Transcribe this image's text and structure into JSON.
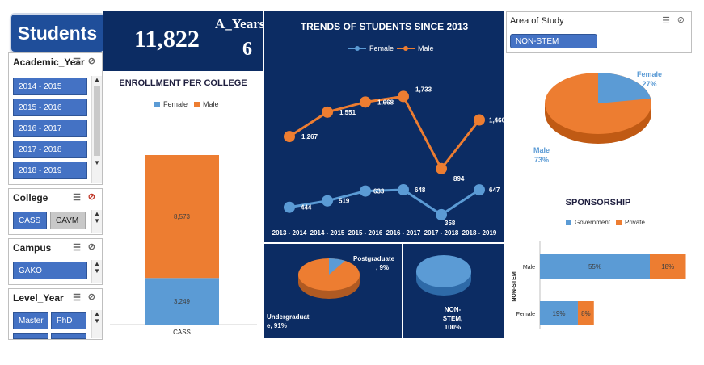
{
  "dashboard_title": "Students",
  "kpi": {
    "total": "11,822",
    "years_label": "A_Years",
    "years_value": "6"
  },
  "slicers": {
    "academic_year": {
      "label": "Academic_Year",
      "items": [
        "2014 - 2015",
        "2015 - 2016",
        "2016 - 2017",
        "2017 - 2018",
        "2018 - 2019"
      ]
    },
    "college": {
      "label": "College",
      "items": [
        "CASS",
        "CAVM"
      ]
    },
    "campus": {
      "label": "Campus",
      "items": [
        "GAKO"
      ]
    },
    "level_year": {
      "label": "Level_Year",
      "items": [
        "Master",
        "PhD"
      ]
    },
    "area_of_study": {
      "label": "Area of Study",
      "items": [
        "NON-STEM"
      ]
    }
  },
  "enrollment": {
    "title": "ENROLLMENT PER COLLEGE",
    "legend": [
      "Female",
      "Male"
    ],
    "category": "CASS",
    "female": 3249,
    "female_label": "3,249",
    "male": 8573,
    "male_label": "8,573"
  },
  "trends": {
    "title": "TRENDS OF STUDENTS SINCE 2013",
    "legend": [
      "Female",
      "Male"
    ],
    "years": [
      "2013 - 2014",
      "2014 - 2015",
      "2015 - 2016",
      "2016 - 2017",
      "2017 - 2018",
      "2018 - 2019"
    ],
    "female": [
      444,
      519,
      633,
      648,
      358,
      647
    ],
    "male": [
      1267,
      1551,
      1668,
      1733,
      894,
      1460
    ],
    "female_labels": [
      "444",
      "519",
      "633",
      "648",
      "358",
      "647"
    ],
    "male_labels": [
      "1,267",
      "1,551",
      "1,668",
      "1,733",
      "894",
      "1,460"
    ]
  },
  "gender_pie": {
    "female_label": "Female",
    "female_pct": "27%",
    "male_label": "Male",
    "male_pct": "73%"
  },
  "level_pie": {
    "post_label": "Postgraduate",
    "post_pct": ", 9%",
    "under_label": "Undergraduat",
    "under_pct": "e, 91%"
  },
  "stem_pie": {
    "line1": "NON-",
    "line2": "STEM,",
    "line3": "100%"
  },
  "sponsorship": {
    "title": "SPONSORSHIP",
    "legend": [
      "Government",
      "Private"
    ],
    "axis_label": "NON-STEM",
    "rows": [
      {
        "label": "Male",
        "gov": 55,
        "gov_label": "55%",
        "priv": 18,
        "priv_label": "18%"
      },
      {
        "label": "Female",
        "gov": 19,
        "gov_label": "19%",
        "priv": 8,
        "priv_label": "8%"
      }
    ]
  },
  "colors": {
    "navy": "#0c2c63",
    "female": "#5b9bd5",
    "male": "#ed7d31",
    "chip": "#4472c4"
  },
  "chart_data": [
    {
      "type": "bar",
      "title": "ENROLLMENT PER COLLEGE",
      "categories": [
        "CASS"
      ],
      "series": [
        {
          "name": "Female",
          "values": [
            3249
          ]
        },
        {
          "name": "Male",
          "values": [
            8573
          ]
        }
      ]
    },
    {
      "type": "line",
      "title": "TRENDS OF STUDENTS SINCE 2013",
      "x": [
        "2013 - 2014",
        "2014 - 2015",
        "2015 - 2016",
        "2016 - 2017",
        "2017 - 2018",
        "2018 - 2019"
      ],
      "series": [
        {
          "name": "Female",
          "values": [
            444,
            519,
            633,
            648,
            358,
            647
          ]
        },
        {
          "name": "Male",
          "values": [
            1267,
            1551,
            1668,
            1733,
            894,
            1460
          ]
        }
      ]
    },
    {
      "type": "pie",
      "categories": [
        "Female",
        "Male"
      ],
      "values": [
        27,
        73
      ]
    },
    {
      "type": "pie",
      "categories": [
        "Postgraduate",
        "Undergraduate"
      ],
      "values": [
        9,
        91
      ]
    },
    {
      "type": "pie",
      "categories": [
        "NON-STEM"
      ],
      "values": [
        100
      ]
    },
    {
      "type": "bar",
      "title": "SPONSORSHIP",
      "categories": [
        "Male",
        "Female"
      ],
      "series": [
        {
          "name": "Government",
          "values": [
            55,
            19
          ]
        },
        {
          "name": "Private",
          "values": [
            18,
            8
          ]
        }
      ]
    }
  ]
}
